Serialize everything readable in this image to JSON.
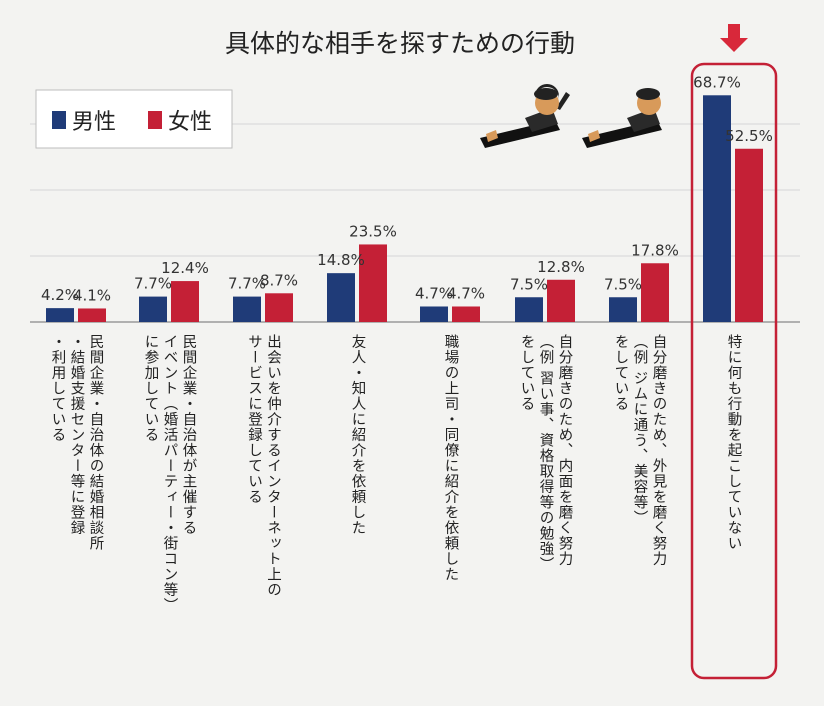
{
  "chart_data": {
    "type": "bar",
    "title": "具体的な相手を探すための行動",
    "series": [
      {
        "name": "男性",
        "color": "#1f3b78",
        "values": [
          4.2,
          7.7,
          7.7,
          14.8,
          4.7,
          7.5,
          7.5,
          68.7
        ]
      },
      {
        "name": "女性",
        "color": "#c42036",
        "values": [
          4.1,
          12.4,
          8.7,
          23.5,
          4.7,
          12.8,
          17.8,
          52.5
        ]
      }
    ],
    "value_labels": {
      "male": [
        "4.2%",
        "7.7%",
        "7.7%",
        "14.8%",
        "4.7%",
        "7.5%",
        "7.5%",
        "68.7%"
      ],
      "female": [
        "4.1%",
        "12.4%",
        "8.7%",
        "23.5%",
        "4.7%",
        "12.8%",
        "17.8%",
        "52.5%"
      ]
    },
    "categories": [
      "民間企業・自治体の結婚相談所\n・結婚支援センター等に登録\n・利用している",
      "民間企業・自治体が主催する\nイベント（婚活パーティー・街コン等）\nに参加している",
      "出会いを仲介するインターネット上の\nサービスに登録している",
      "友人・知人に紹介を依頼した",
      "職場の上司・同僚に紹介を依頼した",
      "自分磨きのため、内面を磨く努力\n（例 習い事、資格取得等の勉強）\nをしている",
      "自分磨きのため、外見を磨く努力\n（例 ジムに通う、美容等）\nをしている",
      "特に何も行動を起こしていない"
    ],
    "legend_position": "top-left",
    "highlighted_category": "特に何も行動を起こしていない",
    "grid": true,
    "ylim": [
      0,
      75
    ]
  }
}
